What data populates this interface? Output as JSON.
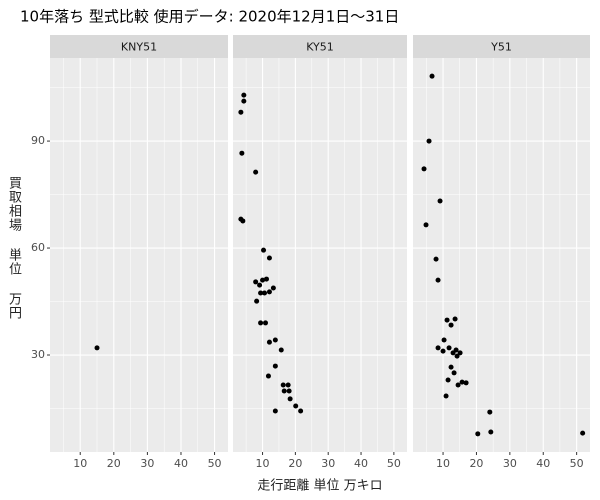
{
  "title": "10年落ち 型式比較 使用データ: 2020年12月1日～31日",
  "x_label": "走行距離 単位 万キロ",
  "y_label": "買取相場 単位 万円",
  "chart_data": [
    {
      "type": "scatter",
      "title": "KNY51",
      "color": "#000000",
      "grid": true,
      "x": [
        15
      ],
      "y": [
        32
      ],
      "xlim": [
        1,
        54
      ],
      "ylim": [
        2.8,
        113.3
      ],
      "xticks": [
        10,
        20,
        30,
        40,
        50
      ],
      "yticks": [
        30,
        60,
        90
      ],
      "xminor": [
        5,
        15,
        25,
        35,
        45
      ],
      "yminor": [
        15,
        45,
        75,
        105
      ]
    },
    {
      "type": "scatter",
      "title": "KY51",
      "color": "#000000",
      "grid": true,
      "x": [
        4.3,
        4.3,
        3.4,
        3.7,
        3.4,
        4.0,
        7.9,
        10.3,
        12.1,
        7.9,
        9.1,
        10.0,
        11.2,
        8.2,
        9.4,
        10.6,
        12.1,
        13.3,
        9.4,
        10.9,
        12.1,
        13.9,
        15.7,
        11.8,
        13.9,
        16.3,
        17.8,
        16.6,
        18.1,
        18.4,
        20.1,
        13.9,
        21.6
      ],
      "y": [
        102.9,
        101.2,
        98.1,
        86.6,
        68.1,
        67.6,
        81.3,
        59.4,
        57.2,
        50.5,
        49.6,
        51.0,
        51.3,
        45.1,
        47.4,
        47.4,
        47.7,
        48.8,
        39.0,
        39.0,
        33.6,
        34.2,
        31.4,
        24.1,
        26.9,
        21.6,
        21.6,
        19.9,
        19.9,
        17.7,
        15.7,
        14.3,
        14.3
      ],
      "xlim": [
        1,
        54
      ],
      "ylim": [
        2.8,
        113.3
      ],
      "xticks": [
        10,
        20,
        30,
        40,
        50
      ],
      "yticks": [
        30,
        60,
        90
      ],
      "xminor": [
        5,
        15,
        25,
        35,
        45
      ],
      "yminor": [
        15,
        45,
        75,
        105
      ]
    },
    {
      "type": "scatter",
      "title": "Y51",
      "color": "#000000",
      "grid": true,
      "x": [
        6.7,
        5.8,
        4.3,
        9.1,
        4.9,
        7.9,
        8.5,
        11.2,
        13.6,
        12.4,
        10.3,
        8.5,
        10.0,
        11.8,
        13.9,
        13.0,
        15.1,
        14.2,
        12.4,
        11.5,
        13.3,
        14.5,
        15.7,
        16.9,
        10.9,
        20.4,
        24.0,
        24.3,
        51.8
      ],
      "y": [
        108.2,
        90,
        82.2,
        73.2,
        66.5,
        56.9,
        51.0,
        39.8,
        40.1,
        38.4,
        34.2,
        32.0,
        31.1,
        32.0,
        31.4,
        30.6,
        30.6,
        29.7,
        26.6,
        23.0,
        25.0,
        21.6,
        22.4,
        22.2,
        18.5,
        7.9,
        14.0,
        8.4,
        8.1
      ],
      "xlim": [
        1,
        54
      ],
      "ylim": [
        2.8,
        113.3
      ],
      "xticks": [
        10,
        20,
        30,
        40,
        50
      ],
      "yticks": [
        30,
        60,
        90
      ],
      "xminor": [
        5,
        15,
        25,
        35,
        45
      ],
      "yminor": [
        15,
        45,
        75,
        105
      ]
    }
  ]
}
